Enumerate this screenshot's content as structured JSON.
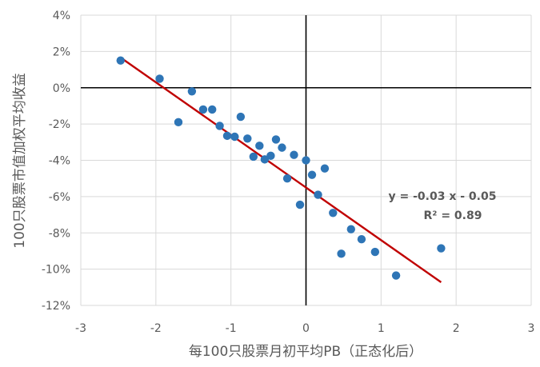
{
  "chart_data": {
    "type": "scatter",
    "xlabel": "每100只股票月初平均PB（正态化后）",
    "ylabel": "100只股票市值加权平均收益",
    "xlim": [
      -3,
      3
    ],
    "ylim": [
      -12,
      4
    ],
    "x_ticks": [
      -3,
      -2,
      -1,
      0,
      1,
      2,
      3
    ],
    "x_tick_labels": [
      "-3",
      "-2",
      "-1",
      "0",
      "1",
      "2",
      "3"
    ],
    "y_ticks": [
      -12,
      -10,
      -8,
      -6,
      -4,
      -2,
      0,
      2,
      4
    ],
    "y_tick_labels": [
      "-12%",
      "-10%",
      "-8%",
      "-6%",
      "-4%",
      "-2%",
      "0%",
      "2%",
      "4%"
    ],
    "grid": true,
    "legend": "none",
    "colors": {
      "points": "#2E75B6",
      "trendline": "#C00000",
      "grid": "#D9D9D9",
      "zero_axis": "#000000"
    },
    "series": [
      {
        "points": [
          [
            -2.47,
            1.5
          ],
          [
            -1.95,
            0.5
          ],
          [
            -1.7,
            -1.9
          ],
          [
            -1.52,
            -0.2
          ],
          [
            -1.37,
            -1.2
          ],
          [
            -1.25,
            -1.2
          ],
          [
            -1.15,
            -2.1
          ],
          [
            -1.05,
            -2.65
          ],
          [
            -0.95,
            -2.7
          ],
          [
            -0.87,
            -1.6
          ],
          [
            -0.78,
            -2.8
          ],
          [
            -0.7,
            -3.8
          ],
          [
            -0.62,
            -3.2
          ],
          [
            -0.55,
            -3.95
          ],
          [
            -0.47,
            -3.75
          ],
          [
            -0.4,
            -2.85
          ],
          [
            -0.32,
            -3.3
          ],
          [
            -0.25,
            -5.0
          ],
          [
            -0.16,
            -3.7
          ],
          [
            -0.08,
            -6.45
          ],
          [
            0.0,
            -4.0
          ],
          [
            0.08,
            -4.8
          ],
          [
            0.16,
            -5.9
          ],
          [
            0.25,
            -4.45
          ],
          [
            0.36,
            -6.9
          ],
          [
            0.47,
            -9.15
          ],
          [
            0.6,
            -7.8
          ],
          [
            0.74,
            -8.35
          ],
          [
            0.92,
            -9.05
          ],
          [
            1.2,
            -10.35
          ],
          [
            1.8,
            -8.85
          ]
        ]
      }
    ],
    "trendline": {
      "x_range": [
        -2.47,
        1.8
      ],
      "slope_pct": -2.9,
      "intercept_pct": -5.5,
      "equation": "y = -0.03 x - 0.05",
      "r_squared": "R² = 0.89"
    }
  }
}
